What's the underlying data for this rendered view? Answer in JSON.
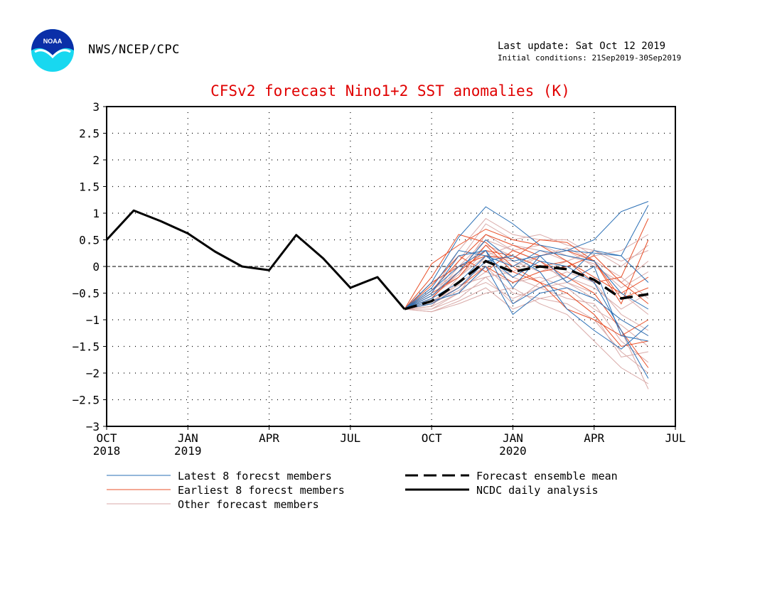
{
  "header": {
    "org": "NWS/NCEP/CPC",
    "last_update": "Last update: Sat Oct 12 2019",
    "initial_conditions": "Initial conditions: 21Sep2019-30Sep2019",
    "logo_text": "NOAA"
  },
  "colors": {
    "title": "#e00000",
    "latest": "#2a6fb5",
    "earliest": "#e8502a",
    "other": "#d9aaa8",
    "analysis": "#000000",
    "mean": "#000000"
  },
  "chart_data": {
    "type": "line",
    "title": "CFSv2 forecast Nino1+2 SST anomalies (K)",
    "ylim": [
      -3,
      3
    ],
    "yticks": [
      "3",
      "2.5",
      "2",
      "1.5",
      "1",
      "0.5",
      "0",
      "−0.5",
      "−1",
      "−1.5",
      "−2",
      "−2.5",
      "−3"
    ],
    "ytick_values": [
      3,
      2.5,
      2,
      1.5,
      1,
      0.5,
      0,
      -0.5,
      -1,
      -1.5,
      -2,
      -2.5,
      -3
    ],
    "x_tick_months": [
      0,
      3,
      6,
      9,
      12,
      15,
      18,
      21
    ],
    "x_tick_labels": [
      "OCT",
      "JAN",
      "APR",
      "JUL",
      "OCT",
      "JAN",
      "APR",
      "JUL"
    ],
    "x_year_labels": [
      {
        "month": 0,
        "label": "2018"
      },
      {
        "month": 3,
        "label": "2019"
      },
      {
        "month": 15,
        "label": "2020"
      }
    ],
    "xlim_months": [
      0,
      21
    ],
    "grid": "dotted",
    "zero_line": "dashed",
    "analysis": {
      "name": "NCDC daily analysis",
      "x": [
        0,
        1,
        2,
        3,
        4,
        5,
        6,
        7,
        8,
        9,
        10,
        11
      ],
      "y": [
        0.5,
        1.05,
        0.85,
        0.62,
        0.28,
        0.0,
        -0.07,
        0.59,
        0.15,
        -0.4,
        -0.2,
        -0.8
      ]
    },
    "ensemble_mean": {
      "name": "Forecast ensemble mean",
      "x": [
        11,
        12,
        13,
        14,
        15,
        16,
        17,
        18,
        19,
        20
      ],
      "y": [
        -0.8,
        -0.65,
        -0.3,
        0.1,
        -0.1,
        0.0,
        -0.05,
        -0.25,
        -0.6,
        -0.52
      ]
    },
    "members_latest": {
      "name": "Latest 8 forecst members",
      "x": [
        11,
        12,
        13,
        14,
        15,
        16,
        17,
        18,
        19,
        20
      ],
      "series": [
        [
          -0.8,
          -0.3,
          0.55,
          1.12,
          0.8,
          0.4,
          0.3,
          0.5,
          1.03,
          1.22
        ],
        [
          -0.8,
          -0.5,
          0.2,
          0.3,
          -0.7,
          -0.4,
          -0.2,
          0.3,
          0.2,
          1.15
        ],
        [
          -0.8,
          -0.6,
          -0.3,
          0.2,
          -0.2,
          0.1,
          0.0,
          -0.3,
          -1.2,
          -2.1
        ],
        [
          -0.8,
          -0.7,
          -0.4,
          0.1,
          0.2,
          -0.1,
          -0.8,
          -1.2,
          -1.55,
          -1.1
        ],
        [
          -0.8,
          -0.4,
          0.3,
          0.2,
          0.0,
          0.3,
          0.2,
          0.1,
          -0.5,
          -0.8
        ],
        [
          -0.8,
          -0.55,
          -0.1,
          0.5,
          0.1,
          0.2,
          -0.3,
          0.0,
          -1.3,
          -1.4
        ],
        [
          -0.8,
          -0.65,
          -0.5,
          0.0,
          -0.9,
          -0.5,
          -0.4,
          -0.6,
          -1.0,
          -1.3
        ],
        [
          -0.8,
          -0.45,
          0.0,
          0.3,
          -0.4,
          0.2,
          0.3,
          0.25,
          0.2,
          -0.3
        ]
      ]
    },
    "members_earliest": {
      "name": "Earliest 8 forecst members",
      "x": [
        11,
        12,
        13,
        14,
        15,
        16,
        17,
        18,
        19,
        20
      ],
      "series": [
        [
          -0.8,
          0.05,
          0.4,
          0.7,
          0.5,
          0.4,
          0.1,
          -0.3,
          -0.2,
          0.9
        ],
        [
          -0.8,
          -0.3,
          0.0,
          0.2,
          0.15,
          0.5,
          0.45,
          0.1,
          -0.7,
          0.5
        ],
        [
          -0.8,
          -0.5,
          -0.2,
          0.4,
          -0.1,
          -0.3,
          -0.5,
          -0.9,
          -1.5,
          -1.4
        ],
        [
          -0.8,
          -0.6,
          -0.1,
          0.3,
          0.2,
          0.0,
          0.1,
          -0.2,
          -0.5,
          -0.2
        ],
        [
          -0.8,
          -0.35,
          0.2,
          -0.1,
          0.3,
          0.1,
          -0.2,
          -0.5,
          -1.2,
          -1.9
        ],
        [
          -0.8,
          -0.7,
          -0.4,
          0.0,
          -0.3,
          -0.1,
          0.0,
          0.2,
          -0.3,
          -0.7
        ],
        [
          -0.8,
          -0.2,
          0.6,
          0.45,
          0.0,
          -0.3,
          -0.8,
          -1.0,
          -1.3,
          -1.0
        ],
        [
          -0.8,
          -0.45,
          0.1,
          0.6,
          0.4,
          0.2,
          0.3,
          0.1,
          -0.6,
          -0.4
        ]
      ]
    },
    "members_other": {
      "name": "Other forecast members",
      "x": [
        11,
        12,
        13,
        14,
        15,
        16,
        17,
        18,
        19,
        20
      ],
      "series": [
        [
          -0.8,
          -0.8,
          -0.5,
          -0.3,
          -0.6,
          -0.4,
          -0.3,
          -0.5,
          -1.2,
          -2.3
        ],
        [
          -0.8,
          -0.85,
          -0.7,
          -0.5,
          -0.4,
          -0.7,
          -0.9,
          -1.4,
          -1.9,
          -2.2
        ],
        [
          -0.8,
          -0.75,
          -0.2,
          0.2,
          0.4,
          0.3,
          0.1,
          -0.2,
          -0.5,
          -0.9
        ],
        [
          -0.8,
          -0.6,
          0.1,
          0.8,
          0.5,
          0.6,
          0.4,
          0.3,
          0.1,
          0.3
        ],
        [
          -0.8,
          -0.7,
          -0.45,
          -0.1,
          -0.3,
          -0.2,
          -0.4,
          -0.8,
          -1.1,
          -1.5
        ],
        [
          -0.8,
          -0.55,
          -0.2,
          0.3,
          0.0,
          0.2,
          0.3,
          0.0,
          -0.3,
          0.1
        ],
        [
          -0.8,
          -0.65,
          -0.4,
          0.1,
          -0.2,
          -0.4,
          -0.6,
          -0.7,
          -1.4,
          -1.8
        ],
        [
          -0.8,
          -0.5,
          0.3,
          0.9,
          0.6,
          0.5,
          0.5,
          0.2,
          0.3,
          0.6
        ],
        [
          -0.8,
          -0.8,
          -0.6,
          -0.2,
          -0.7,
          -0.3,
          -0.1,
          -0.3,
          -0.9,
          -1.2
        ],
        [
          -0.8,
          -0.45,
          -0.1,
          0.4,
          0.2,
          0.0,
          -0.2,
          -0.4,
          -0.8,
          -0.5
        ],
        [
          -0.8,
          -0.6,
          0.0,
          0.5,
          0.3,
          0.4,
          0.2,
          0.05,
          -0.4,
          -0.1
        ],
        [
          -0.8,
          -0.7,
          -0.3,
          0.0,
          -0.5,
          -0.6,
          -0.7,
          -1.0,
          -1.6,
          -2.0
        ],
        [
          -0.8,
          -0.75,
          -0.5,
          0.2,
          0.1,
          -0.1,
          0.1,
          0.3,
          0.0,
          0.4
        ],
        [
          -0.8,
          -0.55,
          -0.15,
          0.6,
          0.3,
          0.1,
          -0.3,
          -0.6,
          -1.0,
          -1.3
        ],
        [
          -0.8,
          -0.65,
          -0.35,
          -0.2,
          -0.1,
          0.2,
          0.35,
          0.1,
          -0.2,
          -0.6
        ],
        [
          -0.8,
          -0.85,
          -0.65,
          -0.4,
          -0.8,
          -0.6,
          -0.5,
          -0.9,
          -1.7,
          -1.6
        ]
      ]
    },
    "legend_placement": "bottom"
  },
  "legend": {
    "latest": "Latest 8 forecst members",
    "earliest": "Earliest 8 forecst members",
    "other": "Other forecast members",
    "mean": "Forecast ensemble mean",
    "analysis": "NCDC daily analysis"
  }
}
